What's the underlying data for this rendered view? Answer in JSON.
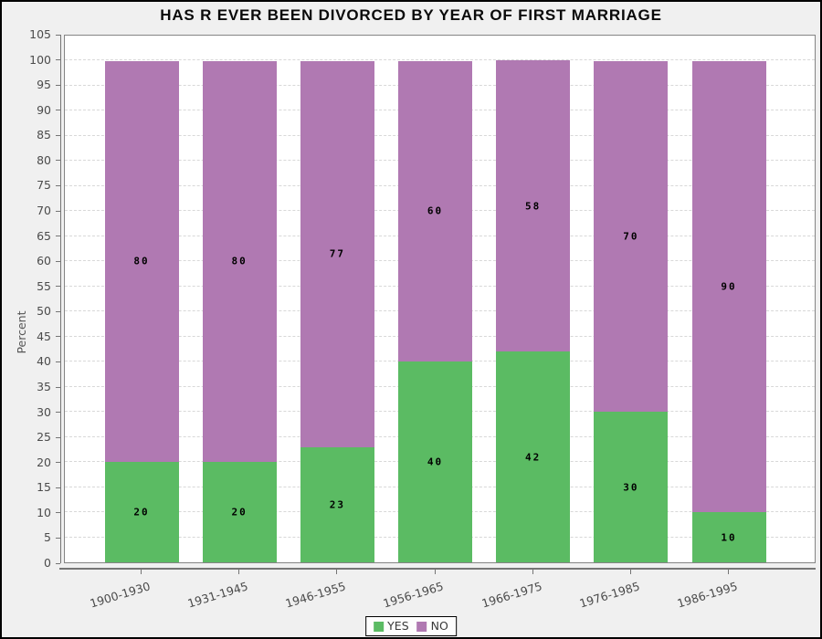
{
  "chart_data": {
    "type": "bar",
    "stacked": true,
    "title": "HAS R EVER BEEN DIVORCED BY YEAR OF FIRST MARRIAGE",
    "categories": [
      "1900-1930",
      "1931-1945",
      "1946-1955",
      "1956-1965",
      "1966-1975",
      "1976-1985",
      "1986-1995"
    ],
    "series": [
      {
        "name": "YES",
        "color": "#5bbb63",
        "values": [
          20,
          20,
          23,
          40,
          42,
          30,
          10
        ]
      },
      {
        "name": "NO",
        "color": "#b079b2",
        "values": [
          80,
          80,
          77,
          60,
          58,
          70,
          90
        ]
      }
    ],
    "xlabel": "",
    "ylabel": "Percent",
    "ylim": [
      0,
      105
    ],
    "ytick_step": 5,
    "bar_total": 100,
    "grid": "horizontal-dashed",
    "legend_position": "bottom-center",
    "bar_value_labels": true
  },
  "colors": {
    "yes": "#5bbb63",
    "no": "#b079b2",
    "background": "#f0f0f0",
    "plot_background": "#ffffff",
    "gridline": "#d8d8d8",
    "axis": "#757575",
    "frame": "#848484"
  }
}
